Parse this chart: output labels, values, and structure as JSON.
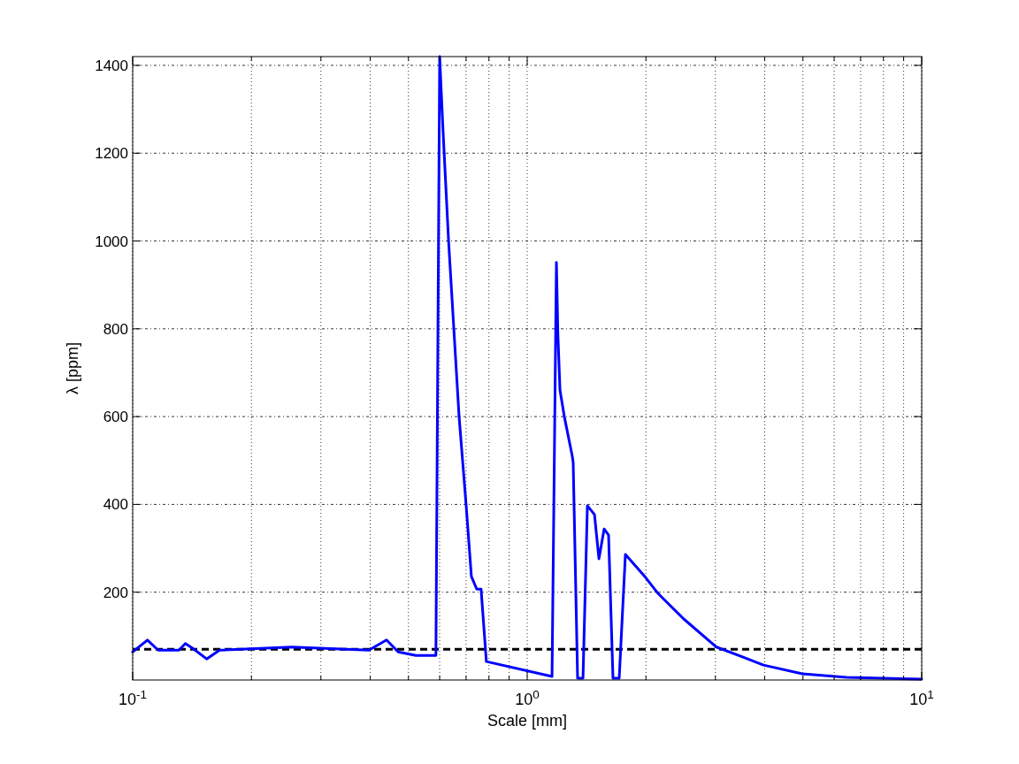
{
  "chart_data": {
    "type": "line",
    "xlabel": "Scale [mm]",
    "ylabel": "λ [ppm]",
    "log": "x",
    "xlim": [
      0.1,
      10
    ],
    "ylim": [
      0,
      1420
    ],
    "xticks": [
      {
        "value": 0.1,
        "label": "10$^{-1}$"
      },
      {
        "value": 0.2,
        "label": null
      },
      {
        "value": 0.3,
        "label": null
      },
      {
        "value": 0.4,
        "label": null
      },
      {
        "value": 0.5,
        "label": null
      },
      {
        "value": 0.6,
        "label": null
      },
      {
        "value": 0.7,
        "label": null
      },
      {
        "value": 0.8,
        "label": null
      },
      {
        "value": 0.9,
        "label": null
      },
      {
        "value": 1,
        "label": "10$^{0}$"
      },
      {
        "value": 2,
        "label": null
      },
      {
        "value": 3,
        "label": null
      },
      {
        "value": 4,
        "label": null
      },
      {
        "value": 5,
        "label": null
      },
      {
        "value": 6,
        "label": null
      },
      {
        "value": 7,
        "label": null
      },
      {
        "value": 8,
        "label": null
      },
      {
        "value": 9,
        "label": null
      },
      {
        "value": 10,
        "label": "10$^{1}$"
      }
    ],
    "yticks": [
      200,
      400,
      600,
      800,
      1000,
      1200,
      1400
    ],
    "grid": true,
    "line_style": "solid",
    "marker": "none",
    "ref_lines": [
      {
        "axis": "y",
        "value": 70,
        "color": "#000000",
        "line_style": "dashed"
      }
    ],
    "series": [
      {
        "color": "#0000ff",
        "x": [
          0.1,
          0.109,
          0.116,
          0.131,
          0.136,
          0.142,
          0.154,
          0.166,
          0.253,
          0.397,
          0.44,
          0.471,
          0.522,
          0.582,
          0.587,
          0.6,
          0.612,
          0.632,
          0.672,
          0.7,
          0.722,
          0.745,
          0.764,
          0.788,
          1.156,
          1.186,
          1.196,
          1.211,
          1.242,
          1.301,
          1.308,
          1.342,
          1.385,
          1.421,
          1.481,
          1.52,
          1.567,
          1.608,
          1.65,
          1.711,
          1.774,
          1.998,
          2.137,
          2.494,
          3.019,
          3.525,
          3.97,
          4.983,
          6.45,
          10
        ],
        "values": [
          64,
          91,
          68,
          68,
          83,
          72,
          48,
          68,
          75,
          68,
          91,
          64,
          56,
          56,
          56,
          1420,
          1250,
          1000,
          600,
          400,
          236,
          207,
          207,
          42,
          8,
          951,
          790,
          660,
          600,
          510,
          495,
          4,
          4,
          397,
          377,
          276,
          344,
          330,
          4,
          4,
          286,
          233,
          199,
          139,
          75,
          52,
          34,
          14,
          6,
          2
        ]
      }
    ]
  }
}
